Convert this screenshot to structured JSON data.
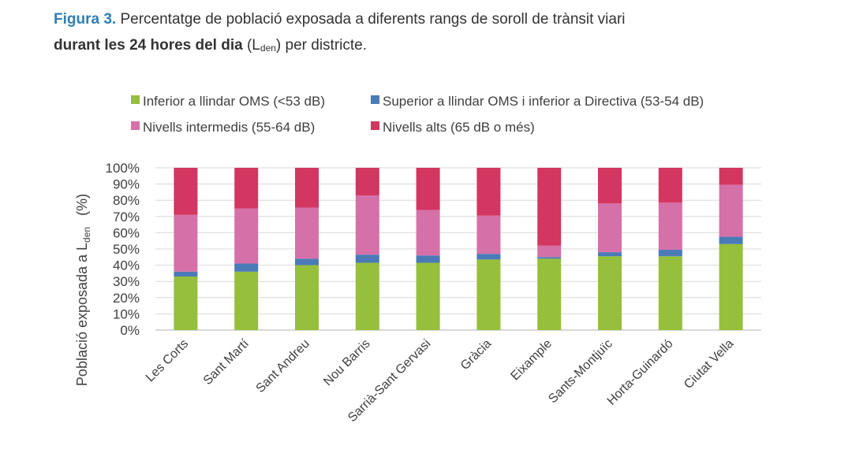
{
  "caption": {
    "figure_label": "Figura 3.",
    "line1_text": " Percentatge de població exposada a diferents rangs de soroll de trànsit viari",
    "line2_bold": "durant les 24 hores del dia",
    "line2_open": " (L",
    "line2_sub": "den",
    "line2_rest": ") per districte."
  },
  "chart_data": {
    "type": "bar",
    "stacked": true,
    "title": "",
    "ylabel_main": "Població exposada a L",
    "ylabel_sub": "den",
    "ylabel_unit": "(%)",
    "ylim": [
      0,
      100
    ],
    "yticks": [
      "0%",
      "10%",
      "20%",
      "30%",
      "40%",
      "50%",
      "60%",
      "70%",
      "80%",
      "90%",
      "100%"
    ],
    "grid": true,
    "legend_position": "top",
    "categories": [
      "Les Corts",
      "Sant Martí",
      "Sant Andreu",
      "Nou Barris",
      "Sarrià-Sant Gervasi",
      "Gràcia",
      "Eixample",
      "Sants-Montjuïc",
      "Horta-Guinardó",
      "Ciutat Vella"
    ],
    "series": [
      {
        "name": "Inferior a llindar OMS (<53 dB)",
        "color": "#96bf3b",
        "values": [
          33,
          36,
          40,
          41.5,
          41.5,
          43.5,
          44,
          45.5,
          45.5,
          53
        ]
      },
      {
        "name": "Superior a llindar OMS i inferior a Directiva (53-54 dB)",
        "color": "#4a7bb7",
        "values": [
          3,
          5,
          4,
          5,
          4.5,
          3.5,
          1,
          2.5,
          4,
          4.5
        ]
      },
      {
        "name": "Nivells intermedis (55-64 dB)",
        "color": "#d670a8",
        "values": [
          35,
          34,
          31.5,
          36.5,
          28,
          23.5,
          7,
          30,
          29,
          32
        ]
      },
      {
        "name": "Nivells alts (65 dB o més)",
        "color": "#d33660",
        "values": [
          29,
          25,
          24.5,
          17,
          26,
          29.5,
          48,
          22,
          21.5,
          10.5
        ]
      }
    ]
  }
}
